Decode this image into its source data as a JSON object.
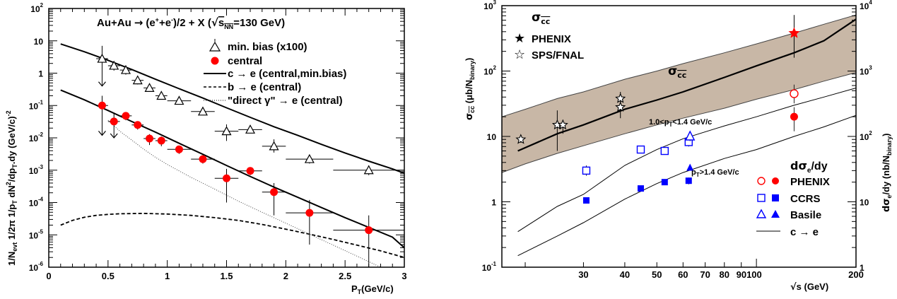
{
  "chart_data": [
    {
      "type": "scatter",
      "title": "Au+Au → (e⁺+e⁻)/2 + X (√sNN=130 GeV)",
      "title_parts": {
        "a": "Au+Au",
        "arrow": "→",
        "b": "(e",
        "sup1": "+",
        "c": "+e",
        "sup2": "-",
        "d": ")/2 + X (",
        "root": "√",
        "s": "s",
        "nn": "NN",
        "e": "=130 GeV)"
      },
      "xlabel": "P_T(GeV/c)",
      "xlabel_parts": {
        "p": "P",
        "sub": "T",
        "rest": "(GeV/c)"
      },
      "ylabel": "1/N_evt 1/2π 1/p_T dN²/dp_T dy (GeV/c)^-2",
      "ylabel_parts": {
        "a": "1/N",
        "sub1": "evt",
        "b": " 1/2π 1/p",
        "sub2": "T",
        "c": " dN",
        "sup1": "2",
        "d": "/dp",
        "sub3": "T",
        "e": ".dy (GeV/c)",
        "sup2": "-2"
      },
      "xlim": [
        0,
        3
      ],
      "ylim": [
        1e-06,
        100
      ],
      "yscale": "log",
      "x_ticks": [
        "0",
        "0.5",
        "1",
        "1.5",
        "2",
        "2.5",
        "3"
      ],
      "y_ticks": [
        {
          "base": "10",
          "exp": "-6"
        },
        {
          "base": "10",
          "exp": "-5"
        },
        {
          "base": "10",
          "exp": "-4"
        },
        {
          "base": "10",
          "exp": "-3"
        },
        {
          "base": "10",
          "exp": "-2"
        },
        {
          "base": "10",
          "exp": "-1"
        },
        {
          "base": "1",
          "exp": ""
        },
        {
          "base": "10",
          "exp": ""
        },
        {
          "base": "10",
          "exp": "2"
        }
      ],
      "legend": [
        {
          "label": "min. bias (x100)",
          "marker": "open-triangle"
        },
        {
          "label": "central",
          "marker": "filled-circle",
          "color": "#ff0000"
        },
        {
          "label": "c → e (central,min.bias)",
          "line": "solid"
        },
        {
          "label": "b → e (central)",
          "line": "dashed"
        },
        {
          "label": "\"direct γ\" → e (central)",
          "line": "dotted"
        }
      ],
      "series": [
        {
          "name": "min. bias (x100)",
          "marker": "open-triangle",
          "x": [
            0.45,
            0.55,
            0.65,
            0.75,
            0.85,
            0.95,
            1.1,
            1.3,
            1.5,
            1.7,
            1.9,
            2.2,
            2.7
          ],
          "xerr": [
            0.05,
            0.05,
            0.05,
            0.05,
            0.05,
            0.05,
            0.1,
            0.1,
            0.1,
            0.1,
            0.1,
            0.2,
            0.3
          ],
          "y": [
            2.8,
            1.7,
            1.25,
            0.6,
            0.35,
            0.2,
            0.14,
            0.065,
            0.016,
            0.018,
            0.0055,
            0.0022,
            0.001
          ],
          "ylo": [
            0.4,
            1.2,
            0.9,
            0.45,
            0.27,
            0.16,
            0.115,
            0.05,
            0.008,
            0.014,
            0.0035,
            0.0016,
            0.0007
          ],
          "yhi": [
            7,
            2.3,
            1.7,
            0.8,
            0.45,
            0.25,
            0.17,
            0.08,
            0.026,
            0.023,
            0.009,
            0.003,
            0.0014
          ]
        },
        {
          "name": "central",
          "marker": "filled-circle",
          "color": "#ff0000",
          "x": [
            0.45,
            0.55,
            0.65,
            0.75,
            0.85,
            0.95,
            1.1,
            1.3,
            1.5,
            1.7,
            1.9,
            2.2,
            2.7
          ],
          "xerr": [
            0.05,
            0.05,
            0.05,
            0.05,
            0.05,
            0.05,
            0.1,
            0.1,
            0.1,
            0.1,
            0.1,
            0.2,
            0.3
          ],
          "y": [
            0.1,
            0.032,
            0.048,
            0.025,
            0.0095,
            0.0082,
            0.0044,
            0.0022,
            0.00056,
            0.00095,
            0.00021,
            4.8e-05,
            1.4e-05
          ],
          "ylo": [
            0.012,
            0.01,
            0.035,
            0.018,
            0.006,
            0.0055,
            0.0032,
            0.0016,
            0.0001,
            0.0007,
            4e-05,
            5e-06,
            1e-06
          ],
          "yhi": [
            0.2,
            0.06,
            0.062,
            0.032,
            0.013,
            0.011,
            0.0057,
            0.0029,
            0.0011,
            0.0012,
            0.0004,
            0.00012,
            4e-05
          ]
        }
      ],
      "curves": [
        {
          "name": "c → e (min.bias)",
          "style": "solid",
          "x": [
            0.1,
            0.3,
            0.5,
            0.7,
            0.9,
            1.1,
            1.3,
            1.5,
            1.7,
            1.9,
            2.1,
            2.3,
            2.5,
            2.7,
            2.9,
            3.0
          ],
          "y": [
            8,
            4.6,
            2.5,
            1.3,
            0.65,
            0.33,
            0.17,
            0.085,
            0.043,
            0.022,
            0.012,
            0.0063,
            0.0034,
            0.0019,
            0.0011,
            0.0008
          ]
        },
        {
          "name": "c → e (central)",
          "style": "solid",
          "x": [
            0.1,
            0.3,
            0.5,
            0.7,
            0.9,
            1.1,
            1.3,
            1.5,
            1.7,
            1.9,
            2.1,
            2.3,
            2.5,
            2.7,
            2.9,
            3.0
          ],
          "y": [
            0.3,
            0.15,
            0.07,
            0.032,
            0.015,
            0.0068,
            0.0031,
            0.0014,
            0.00064,
            0.0003,
            0.000145,
            7e-05,
            3.4e-05,
            1.7e-05,
            8.5e-06,
            4e-06
          ]
        },
        {
          "name": "b → e (central)",
          "style": "dashed",
          "x": [
            0.1,
            0.2,
            0.3,
            0.4,
            0.5,
            0.6,
            0.8,
            1.0,
            1.2,
            1.4,
            1.6,
            1.8,
            2.0,
            2.2,
            2.4,
            2.6,
            2.8,
            3.0
          ],
          "y": [
            2e-05,
            2.8e-05,
            3.5e-05,
            4e-05,
            4.3e-05,
            4.5e-05,
            4.6e-05,
            4.4e-05,
            4e-05,
            3.4e-05,
            2.8e-05,
            2.1e-05,
            1.5e-05,
            1.05e-05,
            7.2e-06,
            4.8e-06,
            3.2e-06,
            2e-06
          ]
        },
        {
          "name": "\"direct γ\" → e (central)",
          "style": "dotted",
          "x": [
            0.5,
            0.6,
            0.7,
            0.8,
            0.9,
            1.0,
            1.2,
            1.4,
            1.6,
            1.8,
            2.0,
            2.2,
            2.4,
            2.6,
            2.8
          ],
          "y": [
            0.035,
            0.016,
            0.0085,
            0.0045,
            0.0025,
            0.0015,
            0.0006,
            0.00026,
            0.00011,
            5e-05,
            2.3e-05,
            1.05e-05,
            4.8e-06,
            2.2e-06,
            1e-06
          ]
        }
      ]
    },
    {
      "type": "scatter",
      "xlabel": "√s (GeV)",
      "xlabel_parts": {
        "root": "√",
        "rest": "s (GeV)"
      },
      "ylabel": "σ_cc̄ (μb/N_binary)",
      "ylabel_parts": {
        "sigma": "σ",
        "sub": "cc",
        "rest": " (μb/N",
        "sub2": "binary",
        "end": ")"
      },
      "ylabel_right": "dσ_e/dy (nb/N_binary)",
      "ylabel_right_parts": {
        "a": "dσ",
        "sub": "e",
        "b": "/dy (nb/N",
        "sub2": "binary",
        "c": ")"
      },
      "xlim": [
        17,
        200
      ],
      "ylim": [
        0.1,
        1000
      ],
      "ylim_right": [
        1,
        10000
      ],
      "xscale": "log",
      "yscale": "log",
      "x_ticks": [
        "30",
        "40",
        "50",
        "60",
        "70",
        "80",
        "90100",
        "200"
      ],
      "y_ticks": [
        {
          "base": "10",
          "exp": "-1"
        },
        {
          "base": "1",
          "exp": ""
        },
        {
          "base": "10",
          "exp": ""
        },
        {
          "base": "10",
          "exp": "2"
        },
        {
          "base": "10",
          "exp": "3"
        }
      ],
      "y_ticks_right": [
        {
          "base": "1",
          "exp": ""
        },
        {
          "base": "10",
          "exp": ""
        },
        {
          "base": "10",
          "exp": "2"
        },
        {
          "base": "10",
          "exp": "3"
        },
        {
          "base": "10",
          "exp": "4"
        }
      ],
      "legend_top": {
        "title": "σcc̄",
        "title_parts": {
          "sigma": "σ",
          "sub": "cc"
        },
        "items": [
          {
            "label": "PHENIX",
            "marker": "filled-star",
            "color": "#ff0000"
          },
          {
            "label": "SPS/FNAL",
            "marker": "open-star"
          }
        ]
      },
      "legend_bottom": {
        "title": "dσe/dy",
        "title_parts": {
          "a": "dσ",
          "sub": "e",
          "b": "/dy"
        },
        "items": [
          {
            "label": "PHENIX",
            "markers": [
              "open-circle",
              "filled-circle"
            ],
            "color": "#ff0000"
          },
          {
            "label": "CCRS",
            "markers": [
              "open-square",
              "filled-square"
            ],
            "color": "#0000ff"
          },
          {
            "label": "Basile",
            "markers": [
              "open-triangle",
              "filled-triangle"
            ],
            "color": "#0000ff"
          },
          {
            "label": "c → e",
            "line": "solid-thin"
          }
        ]
      },
      "annotations": {
        "band": {
          "sigma": "σ",
          "sub": "cc"
        },
        "mid": {
          "a": "1.0<p",
          "sub": "T",
          "b": "<1.4 GeV/c"
        },
        "low": {
          "a": "p",
          "sub": "T",
          "b": ">1.4 GeV/c"
        }
      },
      "series": [
        {
          "name": "PHENIX",
          "marker": "filled-star",
          "color": "#ff0000",
          "x": [
            130
          ],
          "y": [
            380
          ],
          "ylo": [
            160
          ],
          "yhi": [
            720
          ]
        },
        {
          "name": "SPS/FNAL",
          "marker": "open-star",
          "x": [
            19.4,
            25,
            26,
            38.8,
            38.8
          ],
          "y": [
            9,
            15,
            15,
            38,
            28
          ],
          "ylo": [
            8,
            6,
            11,
            25,
            19
          ],
          "yhi": [
            10,
            25,
            18,
            48,
            36
          ]
        },
        {
          "name": "PHENIX 1.0<pT<1.4",
          "marker": "open-circle",
          "color": "#ff0000",
          "x": [
            130
          ],
          "y": [
            45
          ],
          "ylo": [
            32
          ],
          "yhi": [
            62
          ]
        },
        {
          "name": "PHENIX pT>1.4",
          "marker": "filled-circle",
          "color": "#ff0000",
          "x": [
            130
          ],
          "y": [
            20
          ],
          "ylo": [
            12
          ],
          "yhi": [
            28
          ]
        },
        {
          "name": "CCRS 1.0<pT<1.4",
          "marker": "open-square",
          "color": "#0000ff",
          "x": [
            30.6,
            44.7,
            52.8,
            62.4
          ],
          "y": [
            3.0,
            6.3,
            6.0,
            8.2
          ],
          "ylo": [
            2.5,
            6.0,
            5.6,
            7.0
          ],
          "yhi": [
            3.6,
            6.6,
            6.4,
            9.4
          ]
        },
        {
          "name": "CCRS pT>1.4",
          "marker": "filled-square",
          "color": "#0000ff",
          "x": [
            30.6,
            44.7,
            52.8,
            62.4
          ],
          "y": [
            1.05,
            1.6,
            2.0,
            2.1
          ],
          "ylo": [
            0.95,
            1.5,
            1.9,
            1.85
          ],
          "yhi": [
            1.15,
            1.7,
            2.1,
            2.35
          ]
        },
        {
          "name": "Basile 1.0<pT<1.4",
          "marker": "open-triangle",
          "color": "#0000ff",
          "x": [
            63
          ],
          "y": [
            10
          ],
          "ylo": [
            8.5
          ],
          "yhi": [
            11.5
          ]
        },
        {
          "name": "Basile pT>1.4",
          "marker": "filled-triangle",
          "color": "#0000ff",
          "x": [
            63
          ],
          "y": [
            3.3
          ],
          "ylo": [
            3.1
          ],
          "yhi": [
            3.5
          ]
        }
      ],
      "band": {
        "x": [
          17,
          20,
          25,
          30,
          40,
          50,
          60,
          80,
          100,
          130,
          160,
          200
        ],
        "lo": [
          2.8,
          3.8,
          5.5,
          7.2,
          11,
          15,
          19,
          27,
          37,
          52,
          70,
          95
        ],
        "hi": [
          20,
          26,
          38,
          48,
          75,
          100,
          130,
          190,
          260,
          380,
          520,
          720
        ]
      },
      "curves": [
        {
          "name": "σcc̄",
          "style": "solid-thick",
          "x": [
            19,
            25,
            30,
            40,
            50,
            60,
            80,
            100,
            130,
            160,
            200
          ],
          "y": [
            6,
            11,
            15,
            26,
            36,
            48,
            80,
            120,
            190,
            290,
            620
          ]
        },
        {
          "name": "c → e 1.0<pT<1.4",
          "style": "solid-thin",
          "x": [
            19,
            25,
            30,
            40,
            50,
            60,
            80,
            100,
            130,
            160,
            200
          ],
          "y": [
            0.35,
            0.85,
            1.3,
            3.6,
            6.3,
            9.2,
            14.5,
            20,
            30,
            40,
            55
          ]
        },
        {
          "name": "c → e pT>1.4",
          "style": "solid-thin",
          "x": [
            19,
            25,
            30,
            40,
            50,
            60,
            80,
            100,
            130,
            160,
            200
          ],
          "y": [
            0.15,
            0.3,
            0.48,
            1.1,
            1.9,
            2.8,
            4.6,
            6.3,
            10,
            14,
            21
          ]
        }
      ]
    }
  ]
}
